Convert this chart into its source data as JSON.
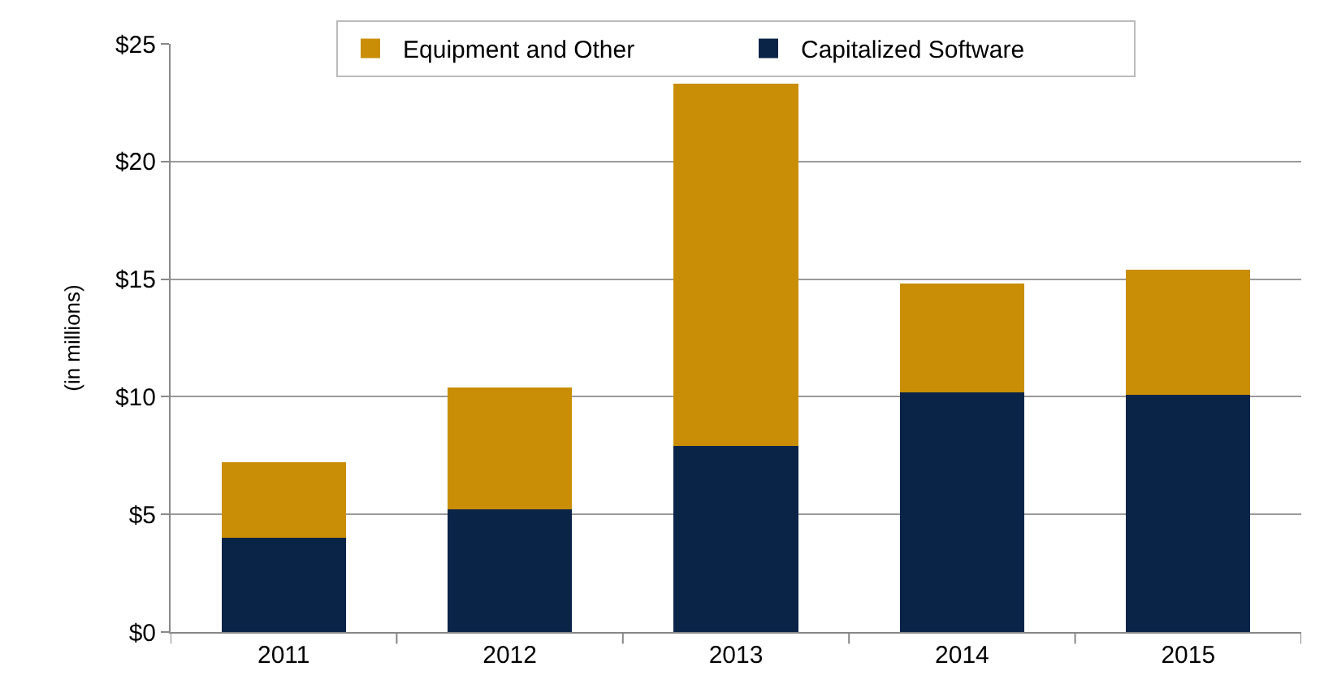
{
  "chart_data": {
    "type": "bar",
    "stacked": true,
    "ylabel": "(in millions)",
    "categories": [
      "2011",
      "2012",
      "2013",
      "2014",
      "2015"
    ],
    "series": [
      {
        "name": "Capitalized Software",
        "color": "#0a2448",
        "values": [
          4.0,
          5.2,
          7.9,
          10.2,
          10.1
        ]
      },
      {
        "name": "Equipment and Other",
        "color": "#c98e06",
        "values": [
          3.2,
          5.2,
          15.4,
          4.6,
          5.3
        ]
      }
    ],
    "ylim": [
      0,
      25
    ],
    "yticks": [
      {
        "value": 0,
        "label": "$0"
      },
      {
        "value": 5,
        "label": "$5"
      },
      {
        "value": 10,
        "label": "$10"
      },
      {
        "value": 15,
        "label": "$15"
      },
      {
        "value": 20,
        "label": "$20"
      },
      {
        "value": 25,
        "label": "$25"
      }
    ],
    "grid": "y",
    "legend": "top"
  }
}
